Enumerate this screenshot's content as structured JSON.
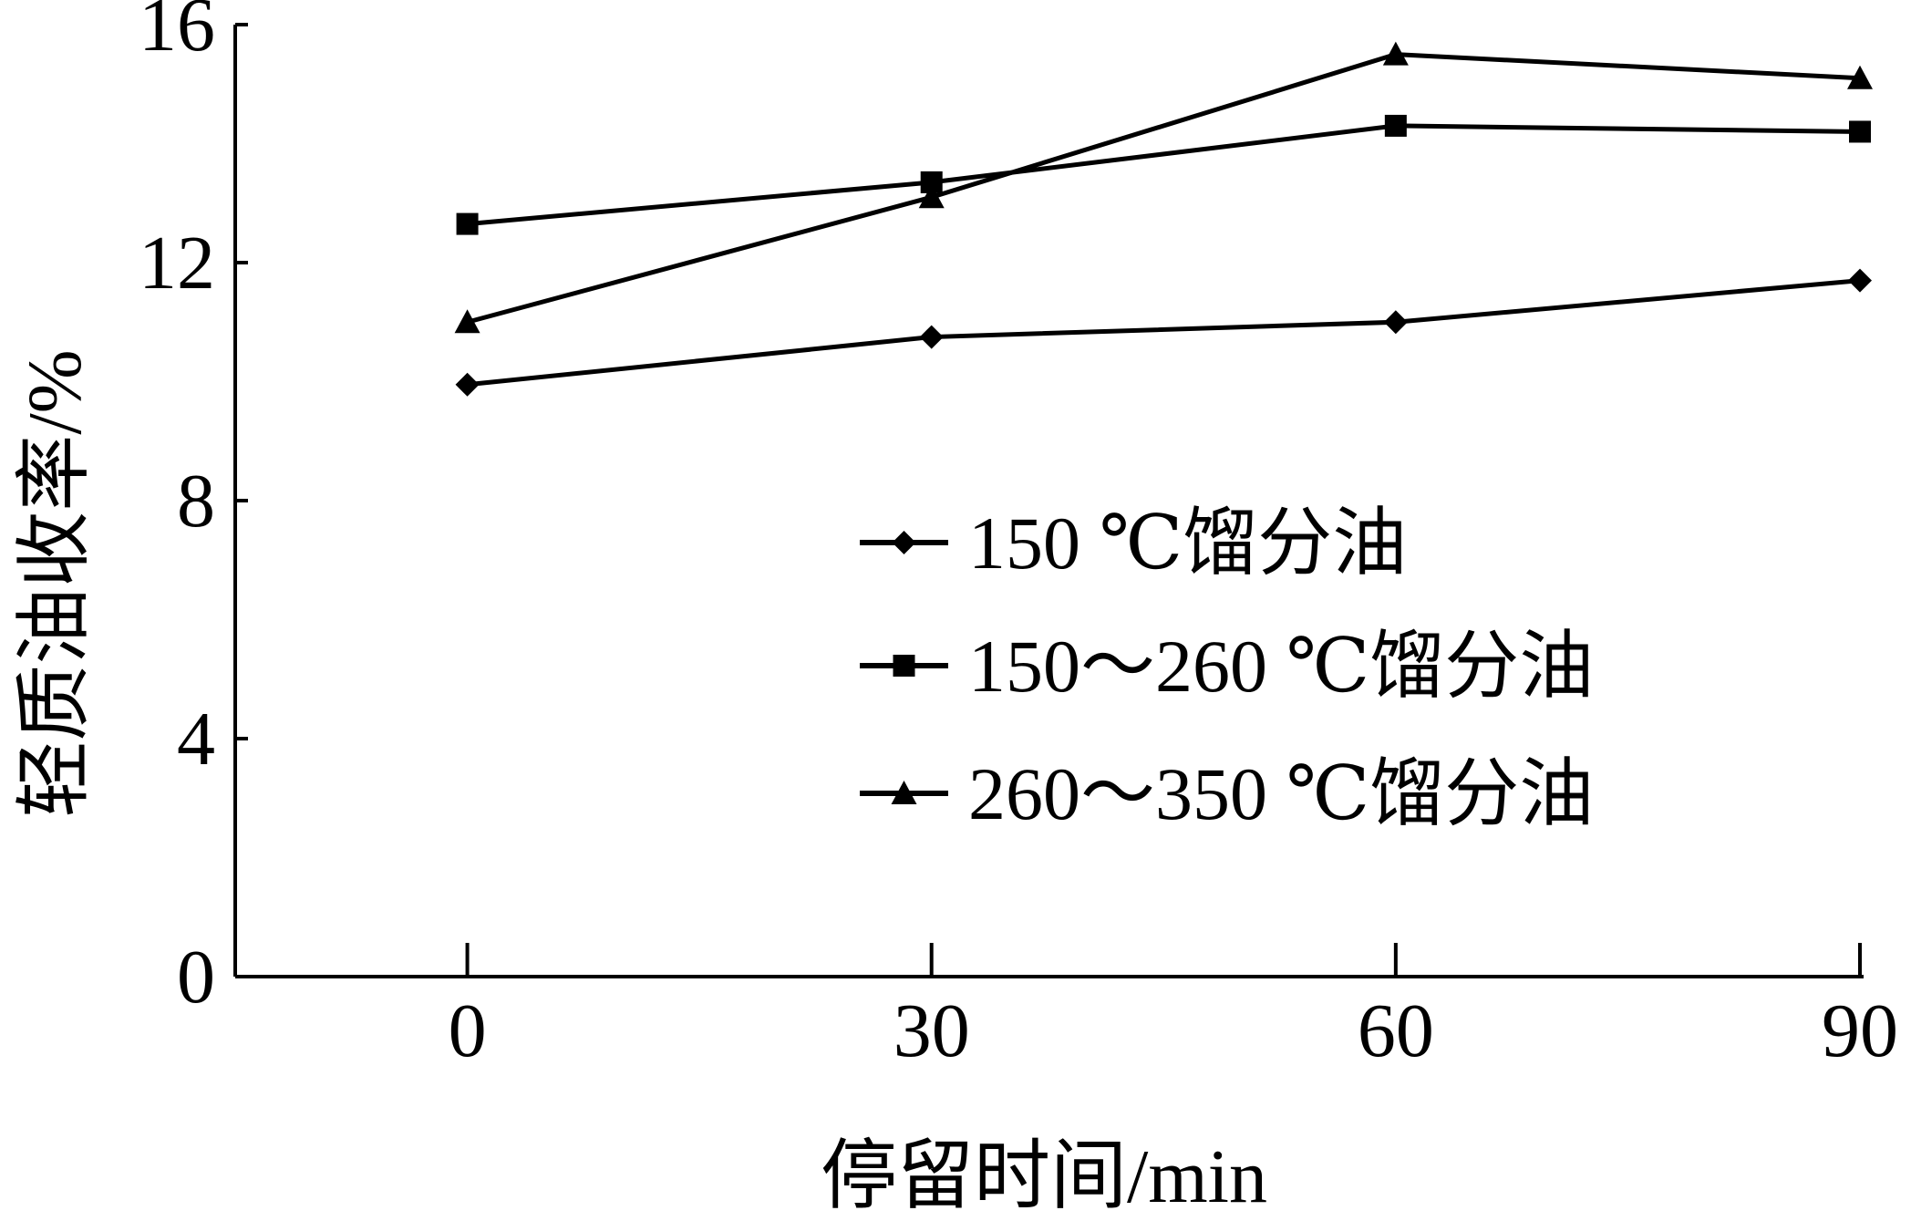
{
  "chart_data": {
    "type": "line",
    "title": "",
    "xlabel": "停留时间/min",
    "ylabel": "轻质油收率/%",
    "x": [
      0,
      30,
      60,
      90
    ],
    "x_ticks": [
      "0",
      "30",
      "60",
      "90"
    ],
    "y_ticks": [
      "0",
      "4",
      "8",
      "12",
      "16"
    ],
    "xlim": [
      -15,
      90
    ],
    "ylim": [
      0,
      16
    ],
    "grid": false,
    "legend_position": "center-right",
    "series": [
      {
        "name": "150 ℃馏分油",
        "marker": "diamond",
        "values": [
          9.95,
          10.75,
          11.0,
          11.7
        ]
      },
      {
        "name": "150～260 ℃馏分油",
        "marker": "square",
        "values": [
          12.65,
          13.35,
          14.3,
          14.2
        ]
      },
      {
        "name": "260～350 ℃馏分油",
        "marker": "triangle",
        "values": [
          11.0,
          13.1,
          15.5,
          15.1
        ]
      }
    ],
    "colors": {
      "line": "#000000",
      "axis": "#000000"
    }
  }
}
